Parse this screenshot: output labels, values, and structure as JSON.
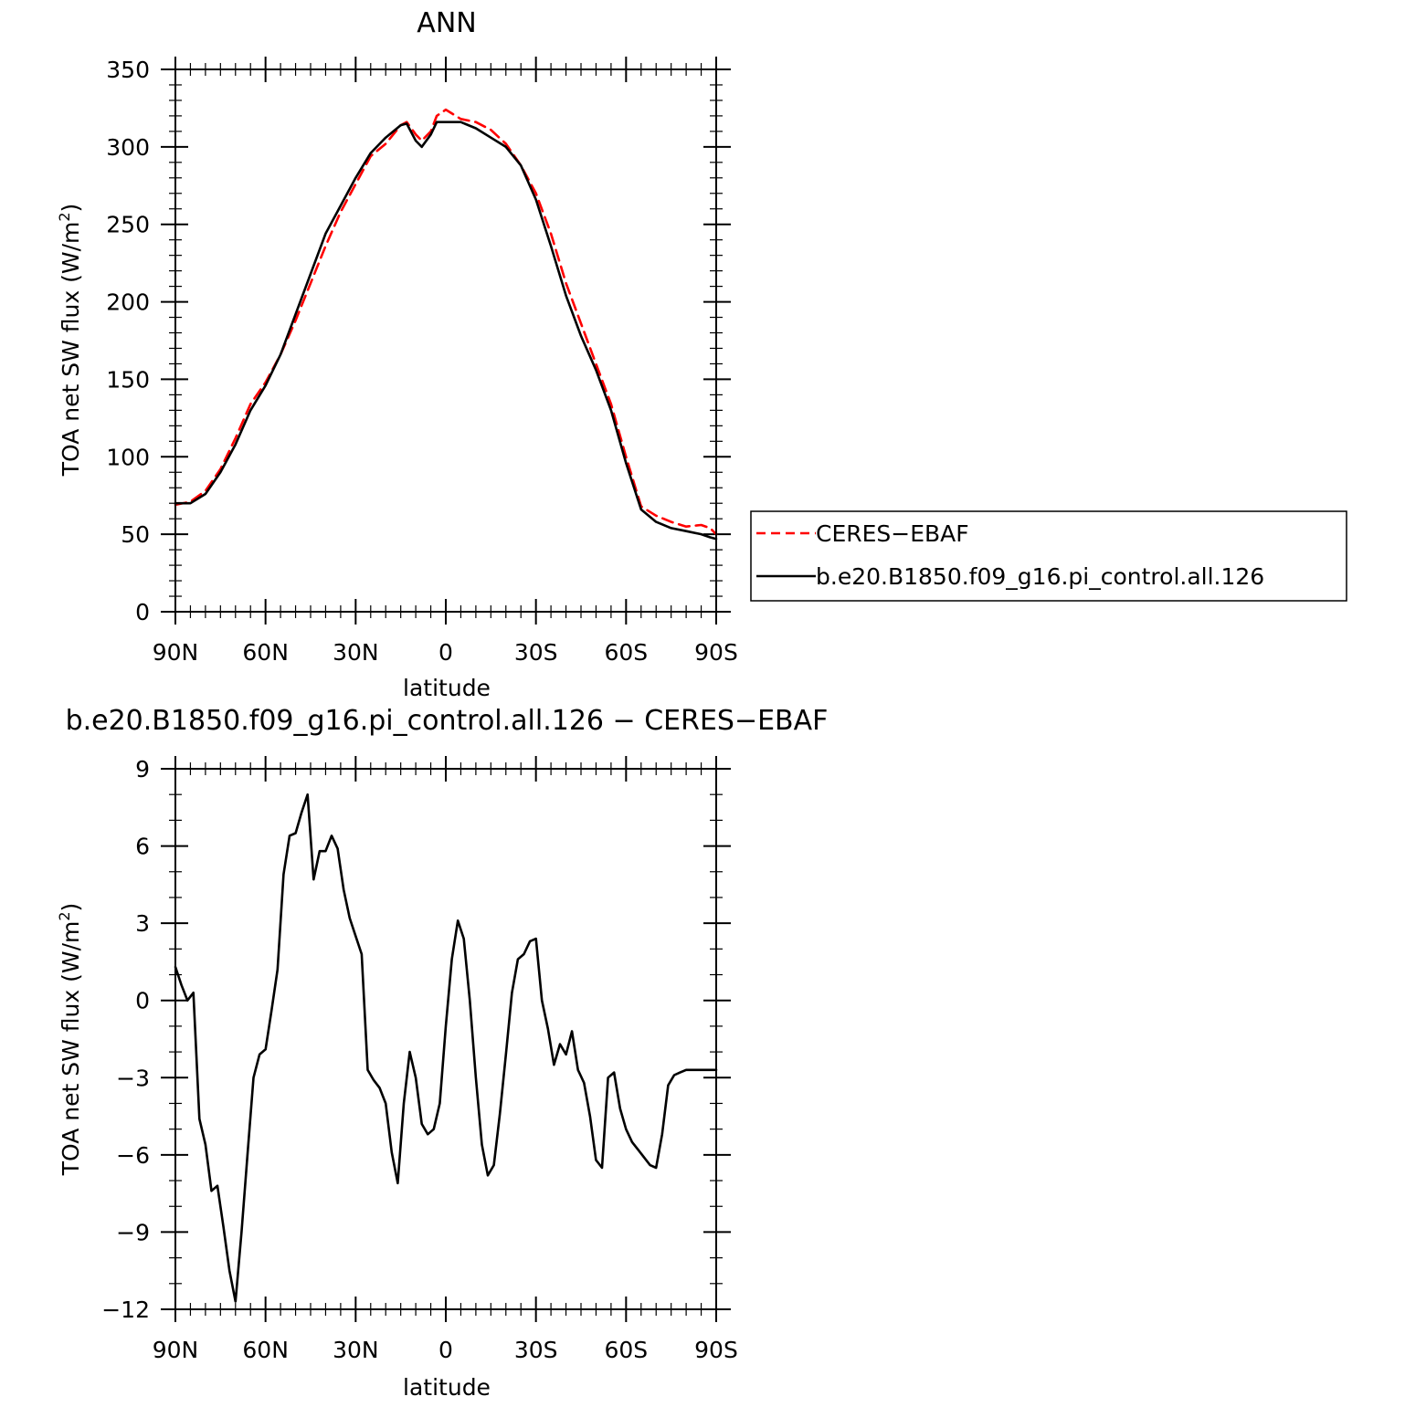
{
  "chart_data": [
    {
      "type": "line",
      "title": "ANN",
      "xlabel": "latitude",
      "ylabel": "TOA net SW flux (W/m",
      "ylabel_sup": "2",
      "ylabel_close": ")",
      "xlim": [
        90,
        -90
      ],
      "ylim": [
        0,
        350
      ],
      "x_ticks": [
        90,
        60,
        30,
        0,
        -30,
        -60,
        -90
      ],
      "x_tick_labels": [
        "90N",
        "60N",
        "30N",
        "0",
        "30S",
        "60S",
        "90S"
      ],
      "y_ticks": [
        0,
        50,
        100,
        150,
        200,
        250,
        300,
        350
      ],
      "y_tick_labels": [
        "0",
        "50",
        "100",
        "150",
        "200",
        "250",
        "300",
        "350"
      ],
      "legend_position": "right",
      "series": [
        {
          "name": "CERES−EBAF",
          "color": "#ff0000",
          "dash": "dashed",
          "x": [
            90,
            85,
            80,
            75,
            70,
            65,
            60,
            55,
            50,
            45,
            40,
            35,
            30,
            25,
            20,
            15,
            13,
            10,
            8,
            5,
            3,
            0,
            -5,
            -10,
            -15,
            -20,
            -25,
            -30,
            -35,
            -40,
            -45,
            -50,
            -55,
            -60,
            -65,
            -70,
            -75,
            -80,
            -85,
            -88,
            -90
          ],
          "values": [
            69,
            71,
            78,
            92,
            112,
            134,
            148,
            166,
            188,
            212,
            236,
            258,
            276,
            294,
            302,
            314,
            316,
            308,
            304,
            310,
            320,
            324,
            318,
            316,
            311,
            302,
            288,
            270,
            244,
            212,
            186,
            160,
            134,
            100,
            68,
            62,
            58,
            55,
            56,
            54,
            50
          ]
        },
        {
          "name": "b.e20.B1850.f09_g16.pi_control.all.126",
          "color": "#000000",
          "dash": "solid",
          "x": [
            90,
            85,
            80,
            75,
            70,
            65,
            60,
            55,
            50,
            45,
            40,
            35,
            30,
            25,
            20,
            15,
            13,
            10,
            8,
            5,
            3,
            0,
            -5,
            -10,
            -15,
            -20,
            -25,
            -30,
            -35,
            -40,
            -45,
            -50,
            -55,
            -60,
            -65,
            -70,
            -75,
            -80,
            -85,
            -88,
            -90
          ],
          "values": [
            70,
            70,
            76,
            90,
            108,
            130,
            146,
            166,
            192,
            218,
            244,
            262,
            280,
            296,
            306,
            314,
            315,
            304,
            300,
            308,
            316,
            316,
            316,
            312,
            306,
            300,
            288,
            266,
            236,
            204,
            178,
            156,
            130,
            96,
            66,
            58,
            54,
            52,
            50,
            48,
            47
          ]
        }
      ]
    },
    {
      "type": "line",
      "title": "b.e20.B1850.f09_g16.pi_control.all.126 − CERES−EBAF",
      "xlabel": "latitude",
      "ylabel": "TOA net SW flux (W/m",
      "ylabel_sup": "2",
      "ylabel_close": ")",
      "xlim": [
        90,
        -90
      ],
      "ylim": [
        -12,
        9
      ],
      "x_ticks": [
        90,
        60,
        30,
        0,
        -30,
        -60,
        -90
      ],
      "x_tick_labels": [
        "90N",
        "60N",
        "30N",
        "0",
        "30S",
        "60S",
        "90S"
      ],
      "y_ticks": [
        -12,
        -9,
        -6,
        -3,
        0,
        3,
        6,
        9
      ],
      "y_tick_labels": [
        "−12",
        "−9",
        "−6",
        "−3",
        "0",
        "3",
        "6",
        "9"
      ],
      "series": [
        {
          "color": "#000000",
          "dash": "solid",
          "x": [
            90,
            88,
            86,
            84,
            82,
            80,
            78,
            76,
            74,
            72,
            70,
            68,
            66,
            64,
            62,
            60,
            58,
            56,
            54,
            52,
            50,
            48,
            46,
            44,
            42,
            40,
            38,
            36,
            34,
            32,
            30,
            28,
            26,
            24,
            22,
            20,
            18,
            16,
            14,
            12,
            10,
            8,
            6,
            4,
            2,
            0,
            -2,
            -4,
            -6,
            -8,
            -10,
            -12,
            -14,
            -16,
            -18,
            -20,
            -22,
            -24,
            -26,
            -28,
            -30,
            -32,
            -34,
            -36,
            -38,
            -40,
            -42,
            -44,
            -46,
            -48,
            -50,
            -52,
            -54,
            -56,
            -58,
            -60,
            -62,
            -64,
            -66,
            -68,
            -70,
            -72,
            -74,
            -76,
            -78,
            -80,
            -82,
            -84,
            -86,
            -88,
            -90
          ],
          "values": [
            1.3,
            0.6,
            0.0,
            0.3,
            -4.6,
            -5.6,
            -7.4,
            -7.2,
            -8.8,
            -10.5,
            -11.7,
            -9.0,
            -6.0,
            -3.0,
            -2.1,
            -1.9,
            -0.4,
            1.2,
            4.9,
            6.4,
            6.5,
            7.3,
            8.0,
            4.7,
            5.8,
            5.8,
            6.4,
            5.9,
            4.3,
            3.2,
            2.5,
            1.8,
            -2.7,
            -3.1,
            -3.4,
            -4.0,
            -5.9,
            -7.1,
            -4.0,
            -2.0,
            -3.0,
            -4.8,
            -5.2,
            -5.0,
            -4.0,
            -1.0,
            1.6,
            3.1,
            2.4,
            0.0,
            -3.0,
            -5.6,
            -6.8,
            -6.4,
            -4.4,
            -2.1,
            0.3,
            1.6,
            1.8,
            2.3,
            2.4,
            0.0,
            -1.1,
            -2.5,
            -1.7,
            -2.1,
            -1.2,
            -2.7,
            -3.2,
            -4.5,
            -6.2,
            -6.5,
            -3.0,
            -2.8,
            -4.2,
            -5.0,
            -5.5,
            -5.8,
            -6.1,
            -6.4,
            -6.5,
            -5.2,
            -3.3,
            -2.9,
            -2.8,
            -2.7,
            -2.7,
            -2.7,
            -2.7,
            -2.7,
            -2.7
          ]
        }
      ]
    }
  ]
}
